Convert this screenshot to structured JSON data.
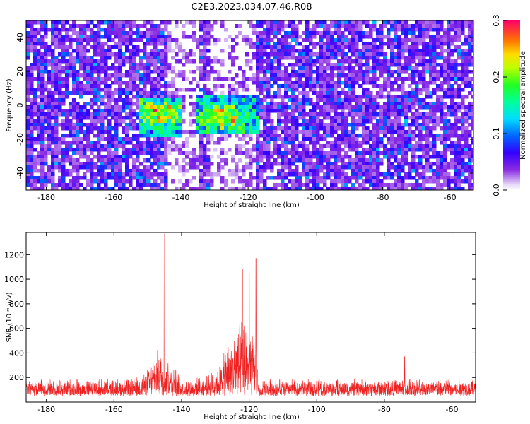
{
  "title": "C2E3.2023.034.07.46.R08",
  "chart_data": [
    {
      "type": "heatmap",
      "xlabel": "Height of straight line (km)",
      "ylabel": "Frequency (Hz)",
      "xlim": [
        -186,
        -53
      ],
      "ylim": [
        -50,
        50
      ],
      "xticks": [
        -180,
        -160,
        -140,
        -120,
        -100,
        -80,
        -60
      ],
      "yticks": [
        -40,
        -20,
        0,
        20,
        40
      ],
      "colorbar": {
        "label": "Normalized spectral amplitude",
        "range": [
          0.0,
          0.3
        ],
        "ticks": [
          0.0,
          0.1,
          0.2,
          0.3
        ]
      },
      "regions": [
        {
          "x_range": [
            -186,
            -145
          ],
          "level": "noise ~0.02-0.05"
        },
        {
          "x_range": [
            -145,
            -135
          ],
          "level": "sparse, low"
        },
        {
          "x_range": [
            -135,
            -132
          ],
          "level": "noise"
        },
        {
          "x_range": [
            -132,
            -118
          ],
          "level": "sparse, low"
        },
        {
          "x_range": [
            -118,
            -53
          ],
          "level": "noise ~0.02-0.05"
        }
      ],
      "signal_clusters": [
        {
          "x_range": [
            -153,
            -140
          ],
          "freq_range": [
            -18,
            5
          ],
          "peak": 0.28,
          "peak_at": [
            -147,
            -3
          ]
        },
        {
          "x_range": [
            -136,
            -117
          ],
          "freq_range": [
            -15,
            8
          ],
          "peak": 0.27,
          "peak_at": [
            -128,
            -6
          ]
        }
      ]
    },
    {
      "type": "line",
      "xlabel": "Height of straight line (km)",
      "ylabel": "SNR (10 * v/v)",
      "xlim": [
        -186,
        -53
      ],
      "ylim": [
        0,
        1380
      ],
      "xticks": [
        -180,
        -160,
        -140,
        -120,
        -100,
        -80,
        -60
      ],
      "yticks": [
        200,
        400,
        600,
        800,
        1000,
        1200
      ],
      "color": "#ee2222",
      "baseline_range": [
        50,
        300
      ],
      "peaks": [
        {
          "x": -145,
          "y": 1370
        },
        {
          "x": -145.5,
          "y": 940
        },
        {
          "x": -147,
          "y": 620
        },
        {
          "x": -122,
          "y": 1080
        },
        {
          "x": -120,
          "y": 1050
        },
        {
          "x": -118,
          "y": 1170
        },
        {
          "x": -74,
          "y": 370
        }
      ]
    }
  ]
}
